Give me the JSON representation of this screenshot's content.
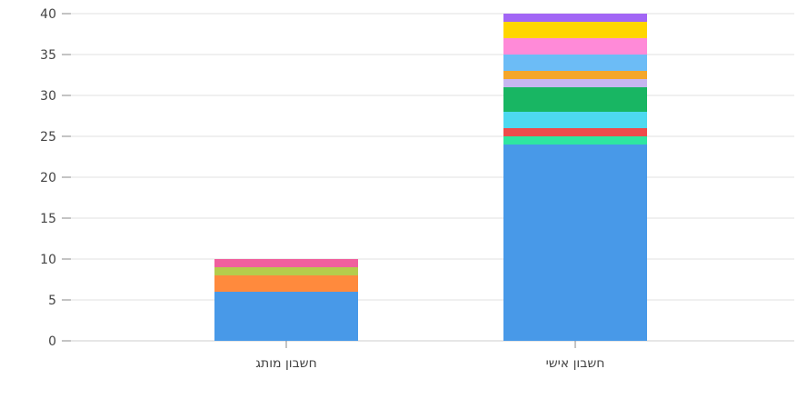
{
  "chart_data": {
    "type": "bar",
    "stacked": true,
    "grid": true,
    "ylim": [
      0,
      40
    ],
    "yticks": [
      0,
      5,
      10,
      15,
      20,
      25,
      30,
      35,
      40
    ],
    "categories": [
      "חשבון מותג",
      "חשבון אישי"
    ],
    "stacks": [
      {
        "category": "חשבון מותג",
        "segments": [
          {
            "value": 6,
            "color": "#4899e8"
          },
          {
            "value": 2,
            "color": "#ff8a3d"
          },
          {
            "value": 1,
            "color": "#b5cc4c"
          },
          {
            "value": 1,
            "color": "#f0609e"
          }
        ]
      },
      {
        "category": "חשבון אישי",
        "segments": [
          {
            "value": 24,
            "color": "#4899e8"
          },
          {
            "value": 1,
            "color": "#2ee6a0"
          },
          {
            "value": 1,
            "color": "#ee4b4b"
          },
          {
            "value": 2,
            "color": "#4dd9f0"
          },
          {
            "value": 3,
            "color": "#18b663"
          },
          {
            "value": 1,
            "color": "#c6b6f0"
          },
          {
            "value": 1,
            "color": "#f4a62a"
          },
          {
            "value": 2,
            "color": "#6cbcf6"
          },
          {
            "value": 2,
            "color": "#ff8ad8"
          },
          {
            "value": 2,
            "color": "#ffd600"
          },
          {
            "value": 1,
            "color": "#a266f5"
          }
        ]
      }
    ]
  }
}
